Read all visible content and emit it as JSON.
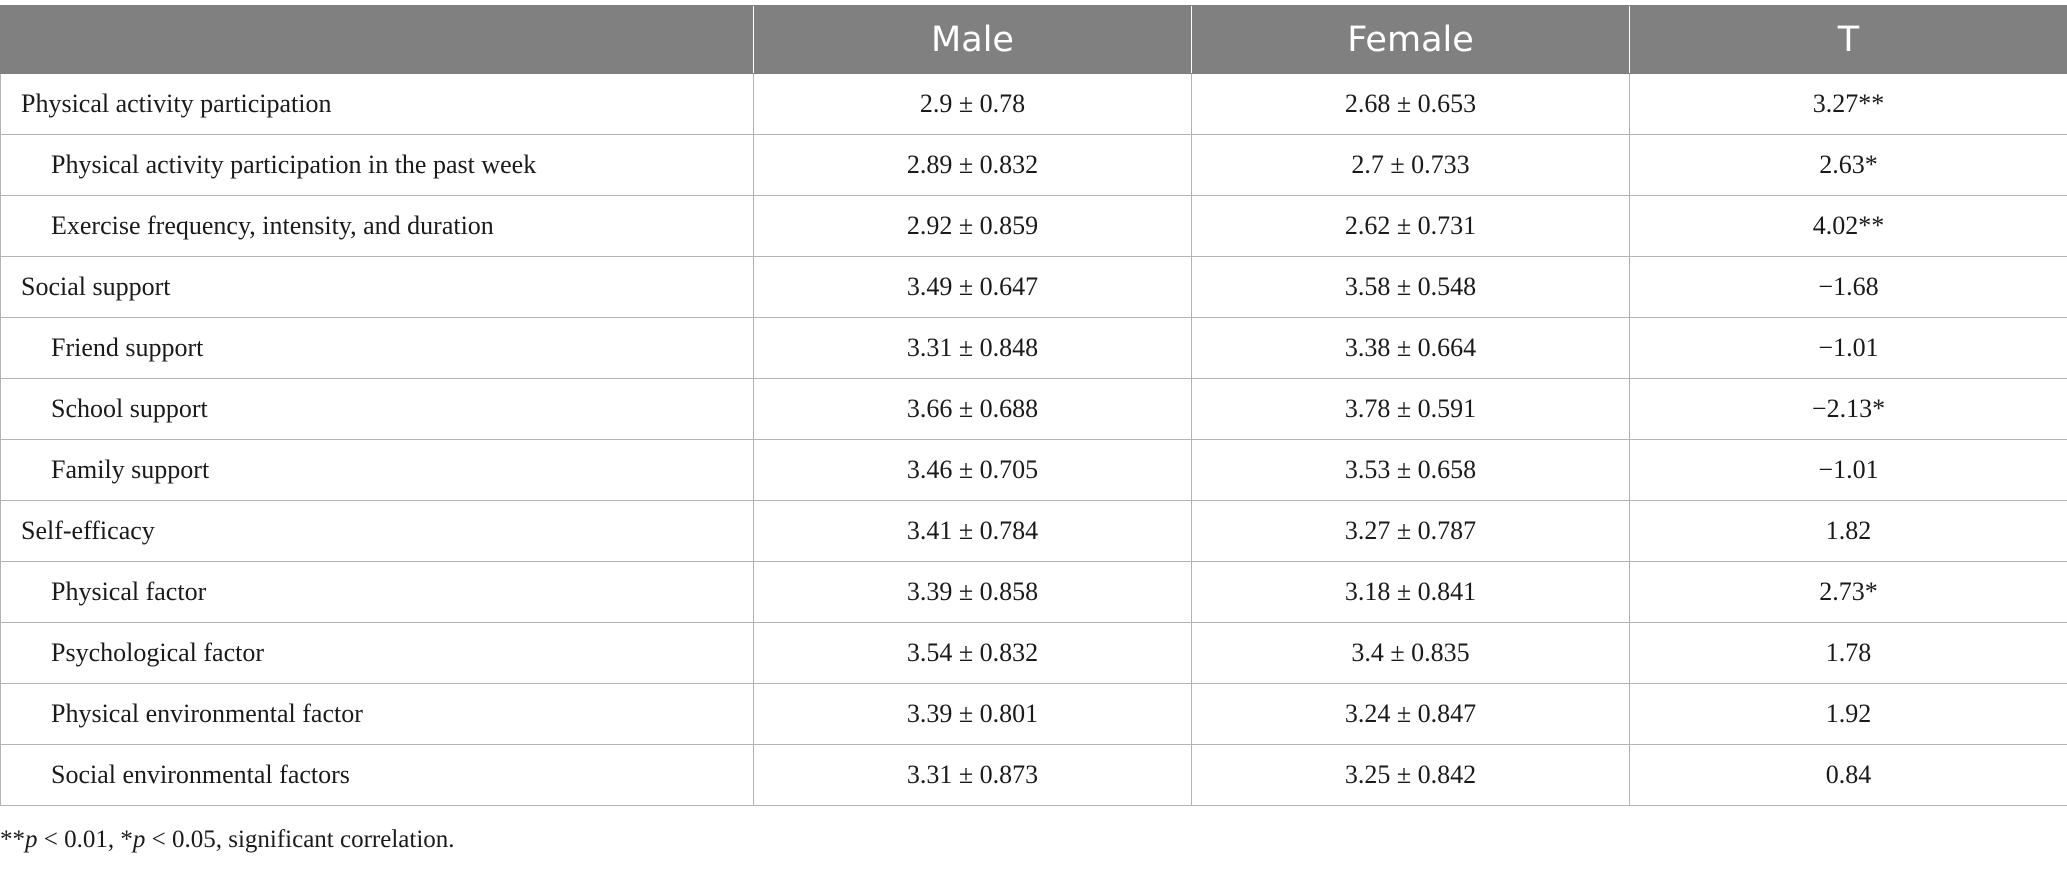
{
  "table": {
    "headers": [
      "",
      "Male",
      "Female",
      "T"
    ],
    "rows": [
      {
        "label": "Physical activity participation",
        "indent": false,
        "male": "2.9 ± 0.78",
        "female": "2.68 ± 0.653",
        "t": "3.27**"
      },
      {
        "label": "Physical activity participation in the past week",
        "indent": true,
        "male": "2.89 ± 0.832",
        "female": "2.7 ± 0.733",
        "t": "2.63*"
      },
      {
        "label": "Exercise frequency, intensity, and duration",
        "indent": true,
        "male": "2.92 ± 0.859",
        "female": "2.62 ± 0.731",
        "t": "4.02**"
      },
      {
        "label": "Social support",
        "indent": false,
        "male": "3.49 ± 0.647",
        "female": "3.58 ± 0.548",
        "t": "−1.68"
      },
      {
        "label": "Friend support",
        "indent": true,
        "male": "3.31 ± 0.848",
        "female": "3.38 ± 0.664",
        "t": "−1.01"
      },
      {
        "label": "School support",
        "indent": true,
        "male": "3.66 ± 0.688",
        "female": "3.78 ± 0.591",
        "t": "−2.13*"
      },
      {
        "label": "Family support",
        "indent": true,
        "male": "3.46 ± 0.705",
        "female": "3.53 ± 0.658",
        "t": "−1.01"
      },
      {
        "label": "Self-efficacy",
        "indent": false,
        "male": "3.41 ± 0.784",
        "female": "3.27 ± 0.787",
        "t": "1.82"
      },
      {
        "label": "Physical factor",
        "indent": true,
        "male": "3.39 ± 0.858",
        "female": "3.18 ± 0.841",
        "t": "2.73*"
      },
      {
        "label": "Psychological factor",
        "indent": true,
        "male": "3.54 ± 0.832",
        "female": "3.4 ± 0.835",
        "t": "1.78"
      },
      {
        "label": "Physical environmental factor",
        "indent": true,
        "male": "3.39 ± 0.801",
        "female": "3.24 ± 0.847",
        "t": "1.92"
      },
      {
        "label": "Social environmental factors",
        "indent": true,
        "male": "3.31 ± 0.873",
        "female": "3.25 ± 0.842",
        "t": "0.84"
      }
    ]
  },
  "footnote": {
    "part1": "**",
    "p1": "p",
    "part2": " < 0.01, *",
    "p2": "p",
    "part3": " < 0.05, significant correlation."
  },
  "colors": {
    "header_bg": "#808080",
    "header_text": "#ffffff",
    "grid": "#b3b3b3"
  }
}
